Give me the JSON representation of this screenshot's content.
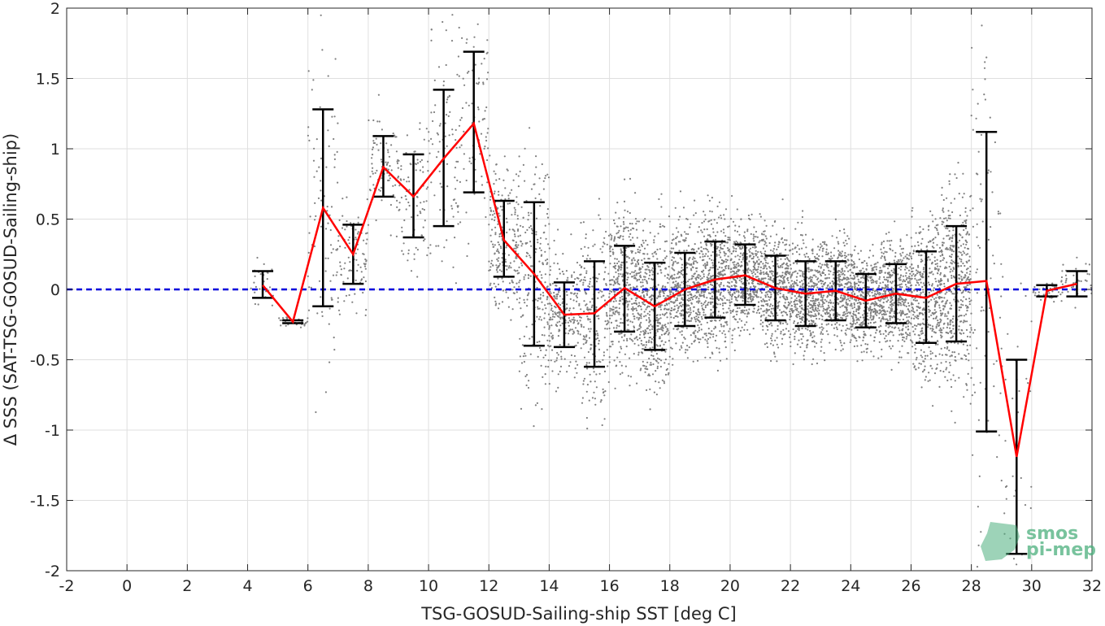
{
  "chart_data": {
    "type": "scatter",
    "title": "",
    "xlabel": "TSG-GOSUD-Sailing-ship SST [deg C]",
    "ylabel": "Δ SSS (SAT-TSG-GOSUD-Sailing-ship)",
    "xlim": [
      -2,
      32
    ],
    "ylim": [
      -2,
      2
    ],
    "xticks": [
      -2,
      0,
      2,
      4,
      6,
      8,
      10,
      12,
      14,
      16,
      18,
      20,
      22,
      24,
      26,
      28,
      30,
      32
    ],
    "yticks": [
      -2,
      -1.5,
      -1,
      -0.5,
      0,
      0.5,
      1,
      1.5,
      2
    ],
    "xtick_labels": [
      "-2",
      "0",
      "2",
      "4",
      "6",
      "8",
      "10",
      "12",
      "14",
      "16",
      "18",
      "20",
      "22",
      "24",
      "26",
      "28",
      "30",
      "32"
    ],
    "ytick_labels": [
      "-2",
      "-1.5",
      "-1",
      "-0.5",
      "0",
      "0.5",
      "1",
      "1.5",
      "2"
    ],
    "grid": true,
    "reference_line": {
      "y": 0,
      "style": "dashed",
      "color": "#0000dd"
    },
    "mean_series": {
      "color": "#ff0000",
      "x": [
        4.5,
        5.5,
        6.5,
        7.5,
        8.5,
        9.5,
        10.5,
        11.5,
        12.5,
        13.5,
        14.5,
        15.5,
        16.5,
        17.5,
        18.5,
        19.5,
        20.5,
        21.5,
        22.5,
        23.5,
        24.5,
        25.5,
        26.5,
        27.5,
        28.5,
        29.5,
        30.5,
        31.5
      ],
      "y": [
        0.03,
        -0.23,
        0.58,
        0.25,
        0.87,
        0.66,
        0.93,
        1.18,
        0.35,
        0.11,
        -0.18,
        -0.17,
        0.01,
        -0.12,
        0.0,
        0.07,
        0.1,
        0.01,
        -0.03,
        -0.01,
        -0.08,
        -0.03,
        -0.06,
        0.04,
        0.06,
        -1.19,
        -0.01,
        0.04
      ]
    },
    "error_bars": {
      "color": "#000000",
      "lower": [
        -0.06,
        -0.24,
        -0.12,
        0.04,
        0.66,
        0.37,
        0.45,
        0.69,
        0.09,
        -0.4,
        -0.41,
        -0.55,
        -0.3,
        -0.43,
        -0.26,
        -0.2,
        -0.11,
        -0.22,
        -0.26,
        -0.22,
        -0.27,
        -0.24,
        -0.38,
        -0.37,
        -1.01,
        -1.88,
        -0.05,
        -0.05
      ],
      "upper": [
        0.13,
        -0.22,
        1.28,
        0.46,
        1.09,
        0.96,
        1.42,
        1.69,
        0.63,
        0.62,
        0.05,
        0.2,
        0.31,
        0.19,
        0.26,
        0.34,
        0.32,
        0.24,
        0.2,
        0.2,
        0.11,
        0.18,
        0.27,
        0.45,
        1.12,
        -0.5,
        0.03,
        0.13
      ]
    },
    "scatter_color": "#808080"
  },
  "watermark": {
    "line1": "smos",
    "line2": "pi-mep"
  }
}
